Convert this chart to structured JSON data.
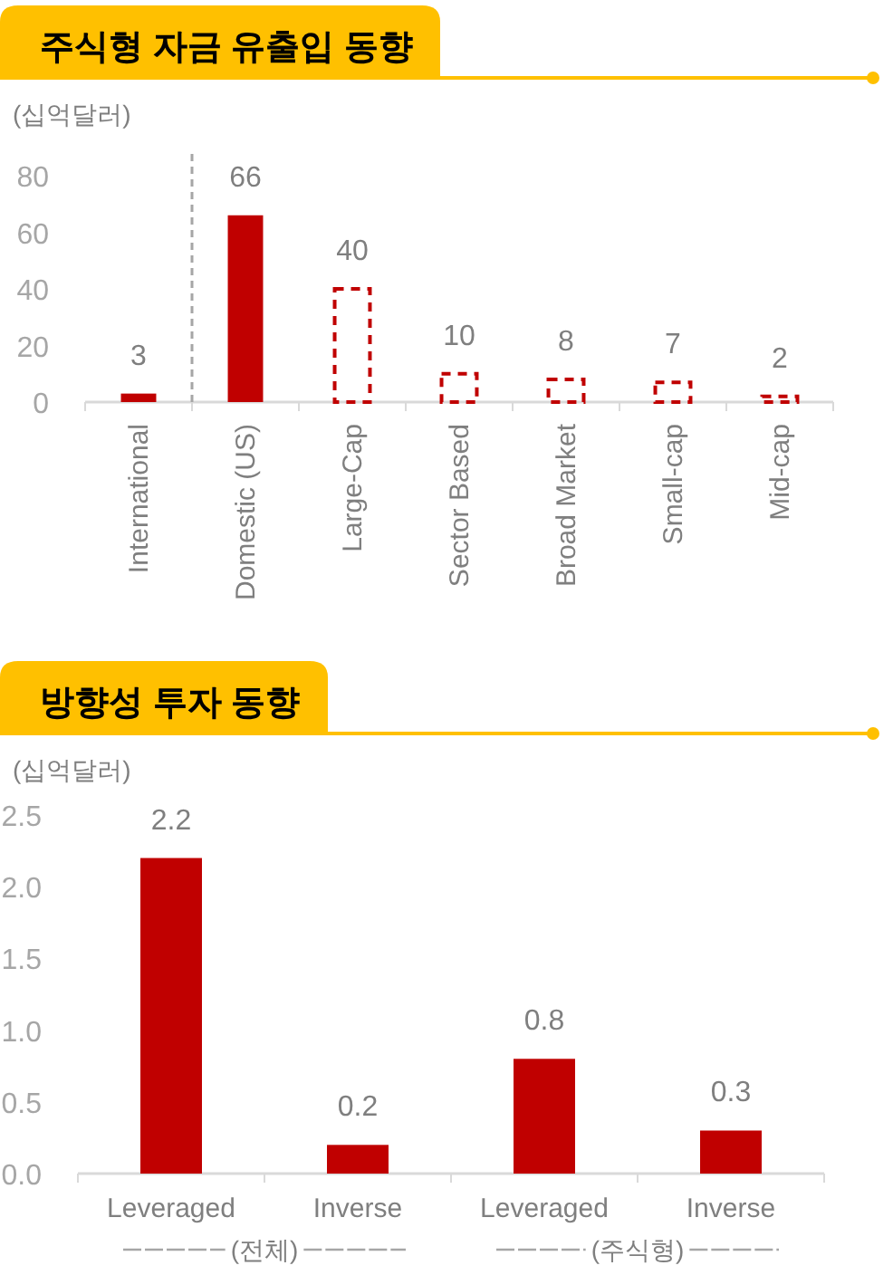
{
  "chart_data": [
    {
      "type": "bar",
      "title": "주식형 자금 유출입 동향",
      "ylabel": "(십억달러)",
      "categories": [
        "International",
        "Domestic (US)",
        "Large-Cap",
        "Sector Based",
        "Broad Market",
        "Small-cap",
        "Mid-cap"
      ],
      "stacked": true,
      "series": [
        {
          "color": "#c00000",
          "values": [
            3,
            66,
            null,
            null,
            null,
            null,
            null
          ]
        },
        {
          "color": "#c00000",
          "line_style": "dashed",
          "values": [
            null,
            null,
            40,
            10,
            8,
            7,
            2
          ]
        }
      ],
      "ylim": [
        0,
        80
      ],
      "yticks": [
        0,
        20,
        40,
        60,
        80
      ],
      "data_labels": true
    },
    {
      "type": "bar",
      "title": "방향성 투자 동향",
      "ylabel": "(십억달러)",
      "categories": [
        "Leveraged",
        "Inverse",
        "Leveraged",
        "Inverse"
      ],
      "values": [
        2.2,
        0.2,
        0.8,
        0.3
      ],
      "color": "#c00000",
      "ylim": [
        0,
        2.5
      ],
      "yticks": [
        {
          "value": 0,
          "label": "0.0"
        },
        0.5,
        {
          "value": 1,
          "label": "1.0"
        },
        1.5,
        {
          "value": 2,
          "label": "2.0"
        },
        2.5
      ],
      "data_labels": true,
      "annotations": [
        "(전체)",
        "(주식형)"
      ]
    }
  ]
}
